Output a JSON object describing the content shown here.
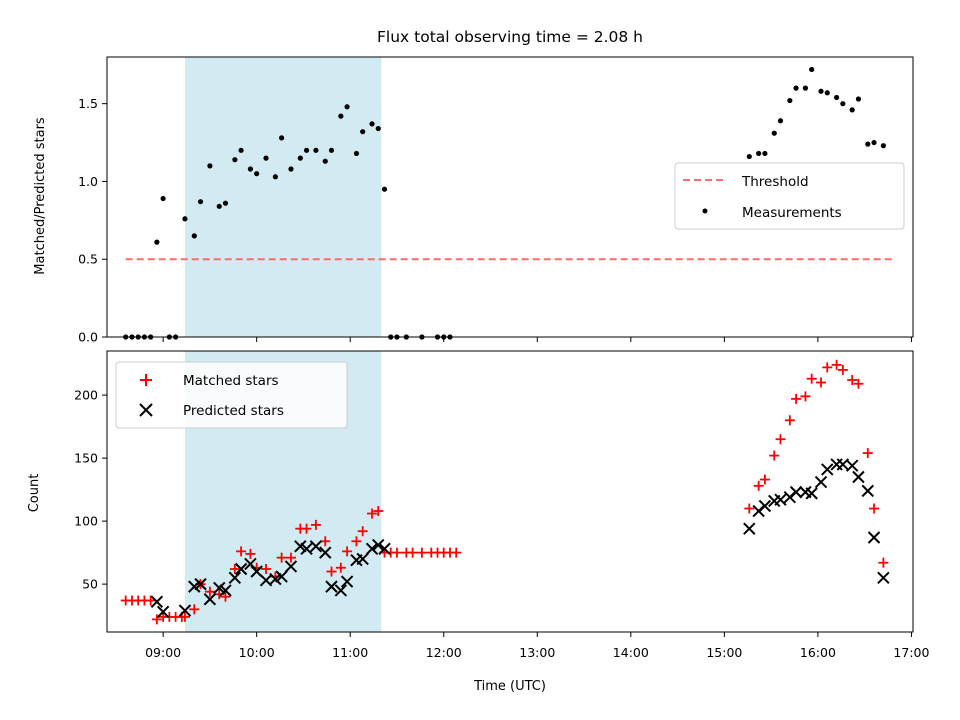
{
  "chart_data": [
    {
      "type": "scatter",
      "title": "Flux total observing time = 2.08 h",
      "xlabel": "",
      "ylabel": "Matched/Predicted stars",
      "xlim": [
        "08:24",
        "17:01"
      ],
      "ylim": [
        0,
        1.8
      ],
      "yticks": [
        "0.0",
        "0.5",
        "1.0",
        "1.5"
      ],
      "grid": false,
      "legend_position": "center-right",
      "highlight_span": [
        "09:14",
        "11:20"
      ],
      "highlight_color": "#add8e6",
      "threshold": {
        "name": "Threshold",
        "value": 0.5,
        "x_range": [
          "08:36",
          "16:48"
        ],
        "color": "#ff6b6b"
      },
      "series": [
        {
          "name": "Measurements",
          "color": "#000000",
          "marker": "dot",
          "points": [
            [
              "08:36",
              0
            ],
            [
              "08:40",
              0
            ],
            [
              "08:44",
              0
            ],
            [
              "08:48",
              0
            ],
            [
              "08:52",
              0
            ],
            [
              "08:56",
              0.61
            ],
            [
              "09:00",
              0.89
            ],
            [
              "09:04",
              0
            ],
            [
              "09:08",
              0
            ],
            [
              "09:14",
              0.76
            ],
            [
              "09:20",
              0.65
            ],
            [
              "09:24",
              0.87
            ],
            [
              "09:30",
              1.1
            ],
            [
              "09:36",
              0.84
            ],
            [
              "09:40",
              0.86
            ],
            [
              "09:46",
              1.14
            ],
            [
              "09:50",
              1.2
            ],
            [
              "09:56",
              1.08
            ],
            [
              "10:00",
              1.05
            ],
            [
              "10:06",
              1.15
            ],
            [
              "10:12",
              1.03
            ],
            [
              "10:16",
              1.28
            ],
            [
              "10:22",
              1.08
            ],
            [
              "10:28",
              1.15
            ],
            [
              "10:32",
              1.2
            ],
            [
              "10:38",
              1.2
            ],
            [
              "10:44",
              1.13
            ],
            [
              "10:48",
              1.2
            ],
            [
              "10:54",
              1.42
            ],
            [
              "10:58",
              1.48
            ],
            [
              "11:04",
              1.18
            ],
            [
              "11:08",
              1.32
            ],
            [
              "11:14",
              1.37
            ],
            [
              "11:18",
              1.34
            ],
            [
              "11:22",
              0.95
            ],
            [
              "11:26",
              0
            ],
            [
              "11:30",
              0
            ],
            [
              "11:36",
              0
            ],
            [
              "11:46",
              0
            ],
            [
              "11:56",
              0
            ],
            [
              "12:00",
              0
            ],
            [
              "12:04",
              0
            ],
            [
              "15:16",
              1.16
            ],
            [
              "15:22",
              1.18
            ],
            [
              "15:26",
              1.18
            ],
            [
              "15:32",
              1.31
            ],
            [
              "15:36",
              1.39
            ],
            [
              "15:42",
              1.52
            ],
            [
              "15:46",
              1.6
            ],
            [
              "15:52",
              1.6
            ],
            [
              "15:56",
              1.72
            ],
            [
              "16:02",
              1.58
            ],
            [
              "16:06",
              1.57
            ],
            [
              "16:12",
              1.54
            ],
            [
              "16:16",
              1.5
            ],
            [
              "16:22",
              1.46
            ],
            [
              "16:26",
              1.53
            ],
            [
              "16:32",
              1.24
            ],
            [
              "16:36",
              1.25
            ],
            [
              "16:42",
              1.23
            ]
          ]
        }
      ]
    },
    {
      "type": "scatter",
      "title": "",
      "xlabel": "Time (UTC)",
      "ylabel": "Count",
      "xlim": [
        "08:24",
        "17:01"
      ],
      "ylim": [
        12,
        235
      ],
      "xticks": [
        "09:00",
        "10:00",
        "11:00",
        "12:00",
        "13:00",
        "14:00",
        "15:00",
        "16:00",
        "17:00"
      ],
      "yticks": [
        "50",
        "100",
        "150",
        "200"
      ],
      "grid": false,
      "legend_position": "top-left",
      "highlight_span": [
        "09:14",
        "11:20"
      ],
      "series": [
        {
          "name": "Matched stars",
          "color": "#ff0000",
          "marker": "plus",
          "points": [
            [
              "08:36",
              37
            ],
            [
              "08:40",
              37
            ],
            [
              "08:44",
              37
            ],
            [
              "08:48",
              37
            ],
            [
              "08:52",
              37
            ],
            [
              "08:56",
              22
            ],
            [
              "09:00",
              24
            ],
            [
              "09:04",
              24
            ],
            [
              "09:08",
              24
            ],
            [
              "09:12",
              24
            ],
            [
              "09:14",
              24
            ],
            [
              "09:20",
              30
            ],
            [
              "09:24",
              50
            ],
            [
              "09:30",
              44
            ],
            [
              "09:36",
              42
            ],
            [
              "09:40",
              40
            ],
            [
              "09:46",
              62
            ],
            [
              "09:50",
              76
            ],
            [
              "09:56",
              74
            ],
            [
              "10:00",
              63
            ],
            [
              "10:06",
              62
            ],
            [
              "10:12",
              56
            ],
            [
              "10:16",
              71
            ],
            [
              "10:22",
              71
            ],
            [
              "10:28",
              94
            ],
            [
              "10:32",
              94
            ],
            [
              "10:38",
              97
            ],
            [
              "10:44",
              84
            ],
            [
              "10:48",
              60
            ],
            [
              "10:54",
              63
            ],
            [
              "10:58",
              76
            ],
            [
              "11:04",
              84
            ],
            [
              "11:08",
              92
            ],
            [
              "11:14",
              106
            ],
            [
              "11:18",
              108
            ],
            [
              "11:22",
              75
            ],
            [
              "11:26",
              75
            ],
            [
              "11:30",
              75
            ],
            [
              "11:36",
              75
            ],
            [
              "11:40",
              75
            ],
            [
              "11:46",
              75
            ],
            [
              "11:52",
              75
            ],
            [
              "11:56",
              75
            ],
            [
              "12:00",
              75
            ],
            [
              "12:04",
              75
            ],
            [
              "12:08",
              75
            ],
            [
              "15:16",
              110
            ],
            [
              "15:22",
              128
            ],
            [
              "15:26",
              133
            ],
            [
              "15:32",
              152
            ],
            [
              "15:36",
              165
            ],
            [
              "15:42",
              180
            ],
            [
              "15:46",
              197
            ],
            [
              "15:52",
              199
            ],
            [
              "15:56",
              213
            ],
            [
              "16:02",
              210
            ],
            [
              "16:06",
              222
            ],
            [
              "16:12",
              224
            ],
            [
              "16:16",
              220
            ],
            [
              "16:22",
              212
            ],
            [
              "16:26",
              209
            ],
            [
              "16:32",
              154
            ],
            [
              "16:36",
              110
            ],
            [
              "16:42",
              67
            ]
          ]
        },
        {
          "name": "Predicted stars",
          "color": "#000000",
          "marker": "x",
          "points": [
            [
              "08:56",
              36
            ],
            [
              "09:00",
              28
            ],
            [
              "09:14",
              29
            ],
            [
              "09:20",
              48
            ],
            [
              "09:24",
              50
            ],
            [
              "09:30",
              38
            ],
            [
              "09:36",
              47
            ],
            [
              "09:40",
              45
            ],
            [
              "09:46",
              55
            ],
            [
              "09:50",
              62
            ],
            [
              "09:56",
              66
            ],
            [
              "10:00",
              60
            ],
            [
              "10:06",
              53
            ],
            [
              "10:12",
              54
            ],
            [
              "10:16",
              56
            ],
            [
              "10:22",
              64
            ],
            [
              "10:28",
              80
            ],
            [
              "10:32",
              78
            ],
            [
              "10:38",
              80
            ],
            [
              "10:44",
              75
            ],
            [
              "10:48",
              48
            ],
            [
              "10:54",
              45
            ],
            [
              "10:58",
              52
            ],
            [
              "11:04",
              69
            ],
            [
              "11:08",
              70
            ],
            [
              "11:14",
              78
            ],
            [
              "11:18",
              81
            ],
            [
              "11:22",
              78
            ],
            [
              "15:16",
              94
            ],
            [
              "15:22",
              108
            ],
            [
              "15:26",
              112
            ],
            [
              "15:32",
              116
            ],
            [
              "15:36",
              117
            ],
            [
              "15:42",
              119
            ],
            [
              "15:46",
              123
            ],
            [
              "15:52",
              123
            ],
            [
              "15:56",
              122
            ],
            [
              "16:02",
              131
            ],
            [
              "16:06",
              141
            ],
            [
              "16:12",
              145
            ],
            [
              "16:16",
              145
            ],
            [
              "16:22",
              144
            ],
            [
              "16:26",
              135
            ],
            [
              "16:32",
              124
            ],
            [
              "16:36",
              87
            ],
            [
              "16:42",
              55
            ]
          ]
        }
      ]
    }
  ]
}
